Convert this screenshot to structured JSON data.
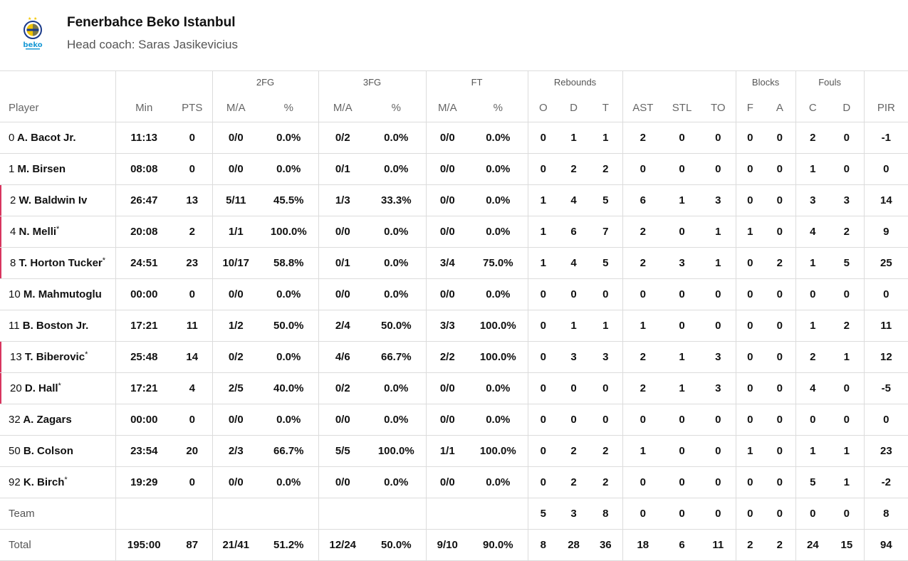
{
  "team": {
    "name": "Fenerbahce Beko Istanbul",
    "coach": "Head coach: Saras Jasikevicius",
    "logo_text": "beko"
  },
  "colors": {
    "starter_marker": "#d8355f",
    "logo_blue": "#1a3a8a",
    "logo_yellow": "#f2c500",
    "beko_blue": "#1a9ad6"
  },
  "groups": {
    "fg2": "2FG",
    "fg3": "3FG",
    "ft": "FT",
    "reb": "Rebounds",
    "blk": "Blocks",
    "fouls": "Fouls"
  },
  "columns": [
    "Player",
    "Min",
    "PTS",
    "M/A",
    "%",
    "M/A",
    "%",
    "M/A",
    "%",
    "O",
    "D",
    "T",
    "AST",
    "STL",
    "TO",
    "F",
    "A",
    "C",
    "D",
    "PIR"
  ],
  "rows": [
    {
      "num": "0",
      "name": "A. Bacot Jr.",
      "starter": false,
      "mark": "",
      "stats": [
        "11:13",
        "0",
        "0/0",
        "0.0%",
        "0/2",
        "0.0%",
        "0/0",
        "0.0%",
        "0",
        "1",
        "1",
        "2",
        "0",
        "0",
        "0",
        "0",
        "2",
        "0",
        "-1"
      ]
    },
    {
      "num": "1",
      "name": "M. Birsen",
      "starter": false,
      "mark": "",
      "stats": [
        "08:08",
        "0",
        "0/0",
        "0.0%",
        "0/1",
        "0.0%",
        "0/0",
        "0.0%",
        "0",
        "2",
        "2",
        "0",
        "0",
        "0",
        "0",
        "0",
        "1",
        "0",
        "0"
      ]
    },
    {
      "num": "2",
      "name": "W. Baldwin Iv",
      "starter": true,
      "mark": "",
      "stats": [
        "26:47",
        "13",
        "5/11",
        "45.5%",
        "1/3",
        "33.3%",
        "0/0",
        "0.0%",
        "1",
        "4",
        "5",
        "6",
        "1",
        "3",
        "0",
        "0",
        "3",
        "3",
        "14"
      ]
    },
    {
      "num": "4",
      "name": "N. Melli",
      "starter": true,
      "mark": "*",
      "stats": [
        "20:08",
        "2",
        "1/1",
        "100.0%",
        "0/0",
        "0.0%",
        "0/0",
        "0.0%",
        "1",
        "6",
        "7",
        "2",
        "0",
        "1",
        "1",
        "0",
        "4",
        "2",
        "9"
      ]
    },
    {
      "num": "8",
      "name": "T. Horton Tucker",
      "starter": true,
      "mark": "*",
      "stats": [
        "24:51",
        "23",
        "10/17",
        "58.8%",
        "0/1",
        "0.0%",
        "3/4",
        "75.0%",
        "1",
        "4",
        "5",
        "2",
        "3",
        "1",
        "0",
        "2",
        "1",
        "5",
        "25"
      ]
    },
    {
      "num": "10",
      "name": "M. Mahmutoglu",
      "starter": false,
      "mark": "",
      "stats": [
        "00:00",
        "0",
        "0/0",
        "0.0%",
        "0/0",
        "0.0%",
        "0/0",
        "0.0%",
        "0",
        "0",
        "0",
        "0",
        "0",
        "0",
        "0",
        "0",
        "0",
        "0",
        "0"
      ]
    },
    {
      "num": "11",
      "name": "B. Boston Jr.",
      "starter": false,
      "mark": "",
      "stats": [
        "17:21",
        "11",
        "1/2",
        "50.0%",
        "2/4",
        "50.0%",
        "3/3",
        "100.0%",
        "0",
        "1",
        "1",
        "1",
        "0",
        "0",
        "0",
        "0",
        "1",
        "2",
        "11"
      ]
    },
    {
      "num": "13",
      "name": "T. Biberovic",
      "starter": true,
      "mark": "*",
      "stats": [
        "25:48",
        "14",
        "0/2",
        "0.0%",
        "4/6",
        "66.7%",
        "2/2",
        "100.0%",
        "0",
        "3",
        "3",
        "2",
        "1",
        "3",
        "0",
        "0",
        "2",
        "1",
        "12"
      ]
    },
    {
      "num": "20",
      "name": "D. Hall",
      "starter": true,
      "mark": "*",
      "stats": [
        "17:21",
        "4",
        "2/5",
        "40.0%",
        "0/2",
        "0.0%",
        "0/0",
        "0.0%",
        "0",
        "0",
        "0",
        "2",
        "1",
        "3",
        "0",
        "0",
        "4",
        "0",
        "-5"
      ]
    },
    {
      "num": "32",
      "name": "A. Zagars",
      "starter": false,
      "mark": "",
      "stats": [
        "00:00",
        "0",
        "0/0",
        "0.0%",
        "0/0",
        "0.0%",
        "0/0",
        "0.0%",
        "0",
        "0",
        "0",
        "0",
        "0",
        "0",
        "0",
        "0",
        "0",
        "0",
        "0"
      ]
    },
    {
      "num": "50",
      "name": "B. Colson",
      "starter": false,
      "mark": "",
      "stats": [
        "23:54",
        "20",
        "2/3",
        "66.7%",
        "5/5",
        "100.0%",
        "1/1",
        "100.0%",
        "0",
        "2",
        "2",
        "1",
        "0",
        "0",
        "1",
        "0",
        "1",
        "1",
        "23"
      ]
    },
    {
      "num": "92",
      "name": "K. Birch",
      "starter": false,
      "mark": "*",
      "stats": [
        "19:29",
        "0",
        "0/0",
        "0.0%",
        "0/0",
        "0.0%",
        "0/0",
        "0.0%",
        "0",
        "2",
        "2",
        "0",
        "0",
        "0",
        "0",
        "0",
        "5",
        "1",
        "-2"
      ]
    }
  ],
  "team_row": {
    "label": "Team",
    "stats": [
      "",
      "",
      "",
      "",
      "",
      "",
      "",
      "",
      "5",
      "3",
      "8",
      "0",
      "0",
      "0",
      "0",
      "0",
      "0",
      "0",
      "8"
    ]
  },
  "total_row": {
    "label": "Total",
    "stats": [
      "195:00",
      "87",
      "21/41",
      "51.2%",
      "12/24",
      "50.0%",
      "9/10",
      "90.0%",
      "8",
      "28",
      "36",
      "18",
      "6",
      "11",
      "2",
      "2",
      "24",
      "15",
      "94"
    ]
  }
}
